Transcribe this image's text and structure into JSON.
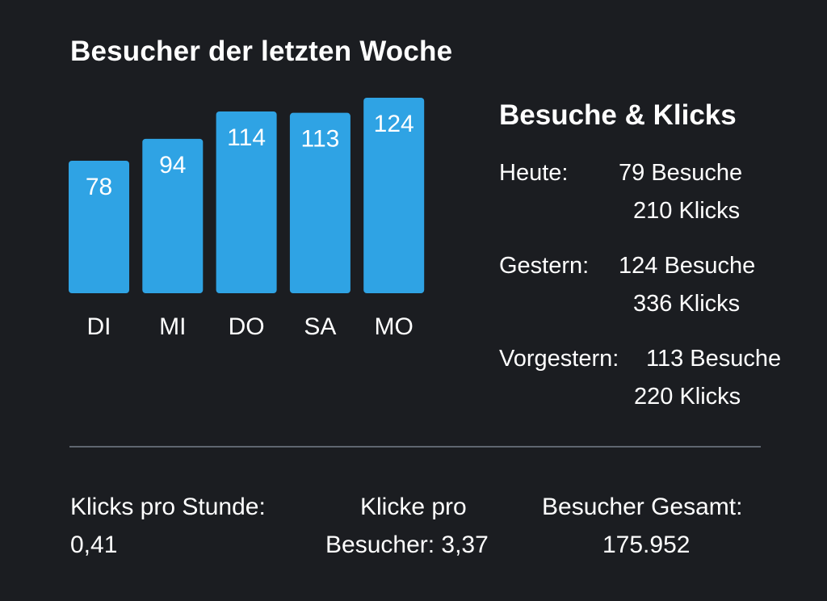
{
  "colors": {
    "background": "#1b1d21",
    "bar": "#2fa3e4",
    "text": "#ffffff",
    "divider": "#5f6670"
  },
  "chart_data": {
    "type": "bar",
    "title": "Besucher der letzten Woche",
    "categories": [
      "DI",
      "MI",
      "DO",
      "SA",
      "MO"
    ],
    "values": [
      78,
      94,
      114,
      113,
      124
    ],
    "xlabel": "",
    "ylabel": "",
    "grid": false,
    "legend": "none",
    "data_labels": [
      "78",
      "94",
      "114",
      "113",
      "124"
    ]
  },
  "side_panel": {
    "title": "Besuche & Klicks",
    "rows": [
      {
        "label": "Heute:",
        "visits": "79 Besuche",
        "clicks": "210 Klicks"
      },
      {
        "label": "Gestern:",
        "visits": "124 Besuche",
        "clicks": "336 Klicks"
      },
      {
        "label": "Vorgestern:",
        "visits": "113 Besuche",
        "clicks": "220 Klicks"
      }
    ]
  },
  "summary": {
    "clicks_per_hour_label": "Klicks pro Stunde:",
    "clicks_per_hour_value": "0,41",
    "clicks_per_visitor_label_1": "Klicke pro",
    "clicks_per_visitor_label_2": "Besucher: 3,37",
    "total_visitors_label": "Besucher Gesamt:",
    "total_visitors_value": "175.952"
  }
}
